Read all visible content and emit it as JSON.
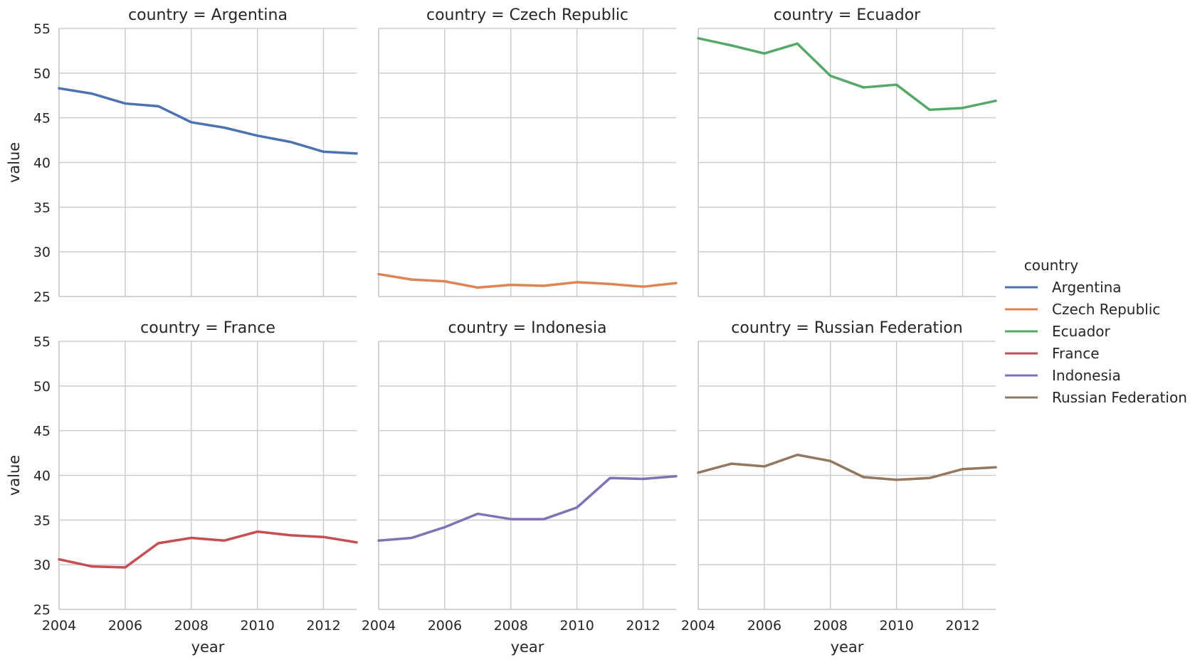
{
  "chart_data": {
    "type": "line",
    "facet_prefix": "country = ",
    "x": [
      2004,
      2005,
      2006,
      2007,
      2008,
      2009,
      2010,
      2011,
      2012,
      2013
    ],
    "xlim": [
      2004,
      2013
    ],
    "ylim": [
      25,
      55
    ],
    "xticks": [
      2004,
      2006,
      2008,
      2010,
      2012
    ],
    "yticks": [
      25,
      30,
      35,
      40,
      45,
      50,
      55
    ],
    "xlabel": "year",
    "ylabel": "value",
    "grid": true,
    "legend": {
      "title": "country",
      "placement": "right"
    },
    "series": [
      {
        "name": "Argentina",
        "color": "#4c72b0",
        "values": [
          48.3,
          47.7,
          46.6,
          46.3,
          44.5,
          43.9,
          43.0,
          42.3,
          41.2,
          41.0
        ]
      },
      {
        "name": "Czech Republic",
        "color": "#dd8452",
        "values": [
          27.5,
          26.9,
          26.7,
          26.0,
          26.3,
          26.2,
          26.6,
          26.4,
          26.1,
          26.5
        ]
      },
      {
        "name": "Ecuador",
        "color": "#55a868",
        "values": [
          53.9,
          53.1,
          52.2,
          53.3,
          49.7,
          48.4,
          48.7,
          45.9,
          46.1,
          46.9
        ]
      },
      {
        "name": "France",
        "color": "#c44e52",
        "values": [
          30.6,
          29.8,
          29.7,
          32.4,
          33.0,
          32.7,
          33.7,
          33.3,
          33.1,
          32.5
        ]
      },
      {
        "name": "Indonesia",
        "color": "#8172b3",
        "values": [
          32.7,
          33.0,
          34.2,
          35.7,
          35.1,
          35.1,
          36.4,
          39.7,
          39.6,
          39.9
        ]
      },
      {
        "name": "Russian Federation",
        "color": "#937860",
        "values": [
          40.3,
          41.3,
          41.0,
          42.3,
          41.6,
          39.8,
          39.5,
          39.7,
          40.7,
          40.9
        ]
      }
    ]
  }
}
